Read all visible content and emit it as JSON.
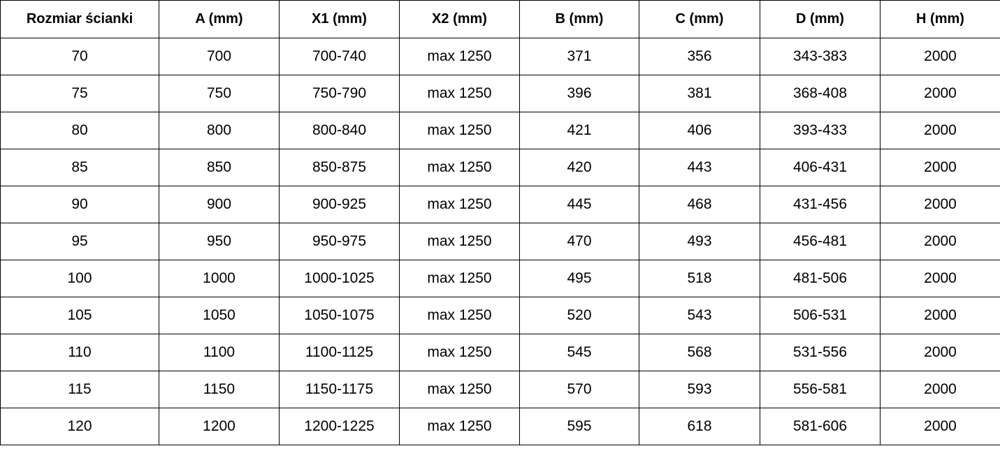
{
  "table": {
    "headers": [
      "Rozmiar ścianki",
      "A (mm)",
      "X1 (mm)",
      "X2 (mm)",
      "B (mm)",
      "C (mm)",
      "D (mm)",
      "H (mm)"
    ],
    "rows": [
      [
        "70",
        "700",
        "700-740",
        "max 1250",
        "371",
        "356",
        "343-383",
        "2000"
      ],
      [
        "75",
        "750",
        "750-790",
        "max 1250",
        "396",
        "381",
        "368-408",
        "2000"
      ],
      [
        "80",
        "800",
        "800-840",
        "max 1250",
        "421",
        "406",
        "393-433",
        "2000"
      ],
      [
        "85",
        "850",
        "850-875",
        "max 1250",
        "420",
        "443",
        "406-431",
        "2000"
      ],
      [
        "90",
        "900",
        "900-925",
        "max 1250",
        "445",
        "468",
        "431-456",
        "2000"
      ],
      [
        "95",
        "950",
        "950-975",
        "max 1250",
        "470",
        "493",
        "456-481",
        "2000"
      ],
      [
        "100",
        "1000",
        "1000-1025",
        "max 1250",
        "495",
        "518",
        "481-506",
        "2000"
      ],
      [
        "105",
        "1050",
        "1050-1075",
        "max 1250",
        "520",
        "543",
        "506-531",
        "2000"
      ],
      [
        "110",
        "1100",
        "1100-1125",
        "max 1250",
        "545",
        "568",
        "531-556",
        "2000"
      ],
      [
        "115",
        "1150",
        "1150-1175",
        "max 1250",
        "570",
        "593",
        "556-581",
        "2000"
      ],
      [
        "120",
        "1200",
        "1200-1225",
        "max 1250",
        "595",
        "618",
        "581-606",
        "2000"
      ]
    ]
  }
}
